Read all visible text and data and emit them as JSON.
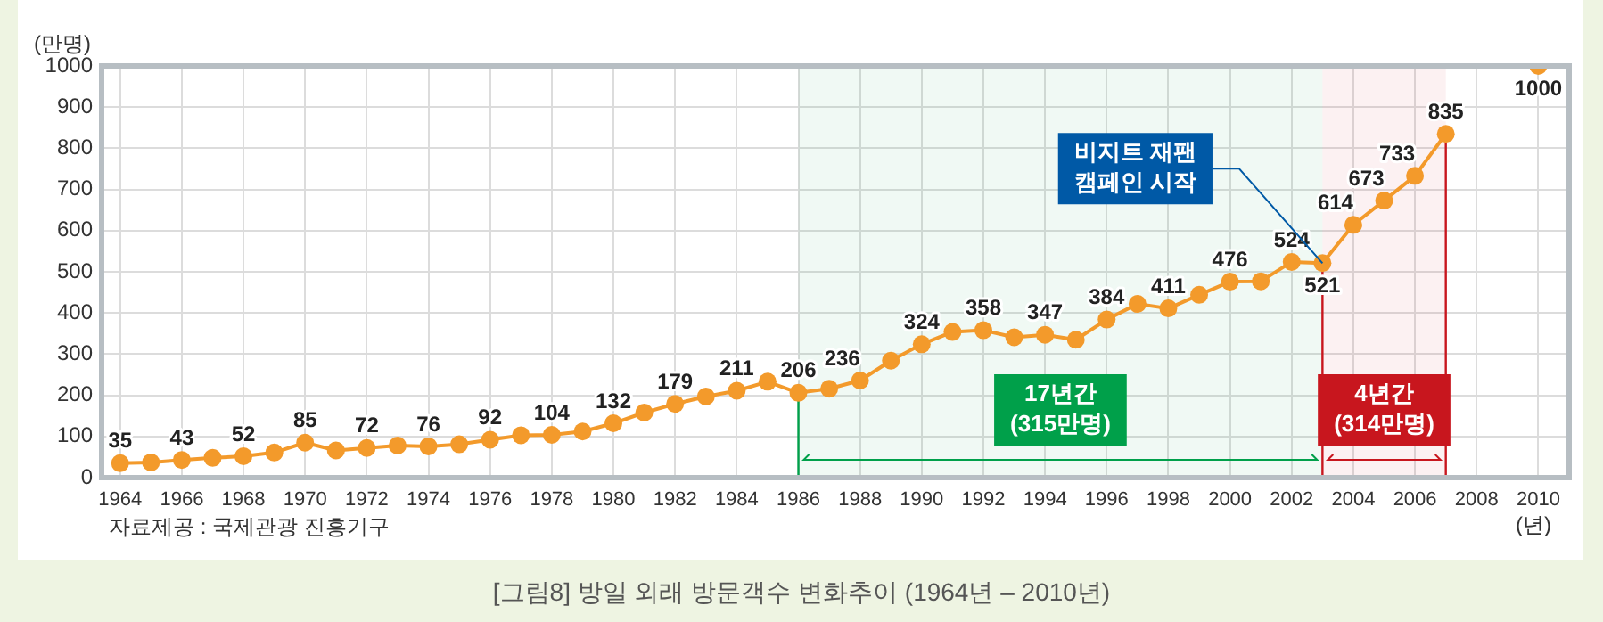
{
  "chart_data": {
    "type": "line",
    "title": "[그림8] 방일 외래 방문객수 변화추이 (1964년 – 2010년)",
    "ylabel": "(만명)",
    "xlabel": "(년)",
    "x": [
      1964,
      1965,
      1966,
      1967,
      1968,
      1969,
      1970,
      1971,
      1972,
      1973,
      1974,
      1975,
      1976,
      1977,
      1978,
      1979,
      1980,
      1981,
      1982,
      1983,
      1984,
      1985,
      1986,
      1987,
      1988,
      1989,
      1990,
      1991,
      1992,
      1993,
      1994,
      1995,
      1996,
      1997,
      1998,
      1999,
      2000,
      2001,
      2002,
      2003,
      2004,
      2005,
      2006,
      2007,
      2008,
      2009,
      2010
    ],
    "values": [
      35,
      37,
      43,
      48,
      52,
      61,
      85,
      66,
      72,
      78,
      76,
      81,
      92,
      103,
      104,
      112,
      132,
      158,
      179,
      197,
      211,
      233,
      206,
      216,
      236,
      284,
      324,
      354,
      358,
      341,
      347,
      335,
      384,
      422,
      411,
      444,
      476,
      477,
      524,
      521,
      614,
      673,
      733,
      835,
      null,
      null,
      1000
    ],
    "value_labels": [
      "35",
      null,
      "43",
      null,
      "52",
      null,
      "85",
      null,
      "72",
      null,
      "76",
      null,
      "92",
      null,
      "104",
      null,
      "132",
      null,
      "179",
      null,
      "211",
      null,
      "206",
      null,
      "236",
      null,
      "324",
      null,
      "358",
      null,
      "347",
      null,
      "384",
      null,
      "411",
      null,
      "476",
      null,
      "524",
      "521",
      "614",
      "673",
      "733",
      "835",
      null,
      null,
      "1000"
    ],
    "color": "#f39a2b",
    "marker": "circle",
    "grid": true,
    "xlim": [
      1963.4,
      2011
    ],
    "xticks": [
      1964,
      1966,
      1968,
      1970,
      1972,
      1974,
      1976,
      1978,
      1980,
      1982,
      1984,
      1986,
      1988,
      1990,
      1992,
      1994,
      1996,
      1998,
      2000,
      2002,
      2004,
      2006,
      2008,
      2010
    ],
    "ylim": [
      0,
      1000
    ],
    "yticks": [
      0,
      100,
      200,
      300,
      400,
      500,
      600,
      700,
      800,
      900,
      1000
    ],
    "ref_lines": [
      {
        "axis": "x",
        "value": 1986,
        "color": "#00a04a"
      },
      {
        "axis": "x",
        "value": 2003,
        "color": "#c8161e"
      },
      {
        "axis": "x",
        "value": 2007,
        "color": "#c8161e"
      }
    ],
    "bands": [
      {
        "axis": "x",
        "from": 1986,
        "to": 2003,
        "label": "17년간 (315만명)",
        "color": "#00a04a"
      },
      {
        "axis": "x",
        "from": 2003,
        "to": 2007,
        "label": "4년간 (314만명)",
        "color": "#c8161e"
      }
    ],
    "annotations": [
      {
        "text": "비지트 재팬 캠페인 시작",
        "x": 2003,
        "y": 521
      },
      "자료제공 : 국제관광 진흥기구"
    ]
  }
}
